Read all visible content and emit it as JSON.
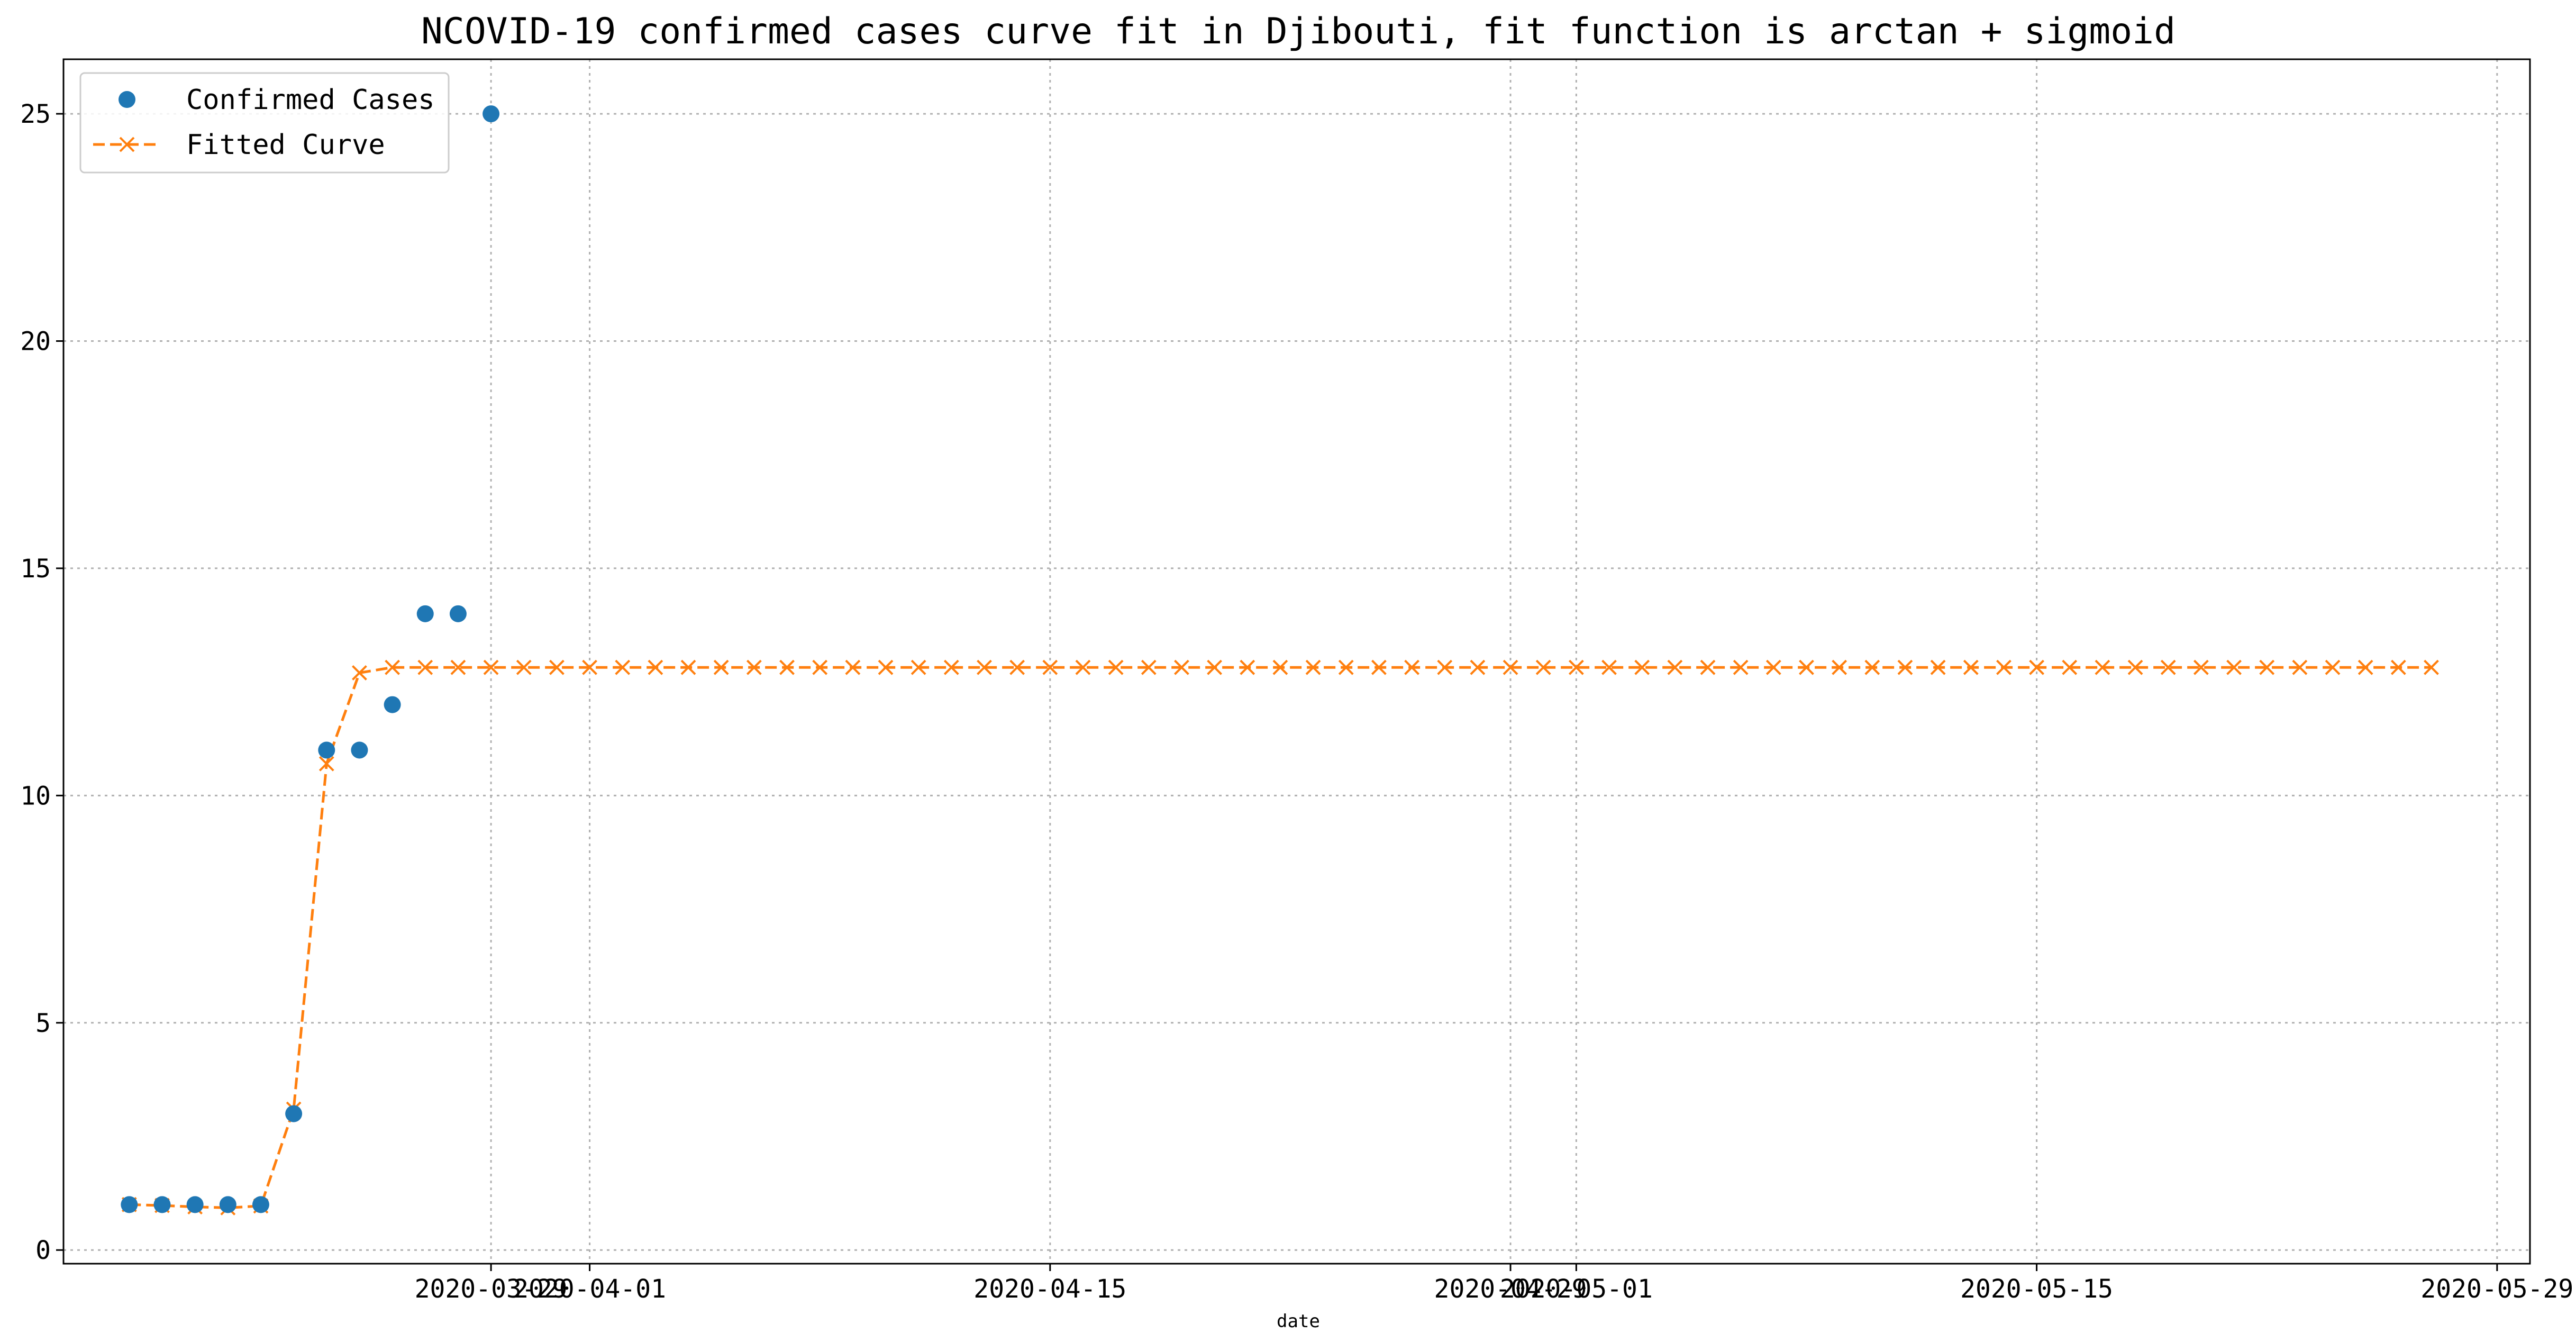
{
  "chart_data": {
    "type": "line",
    "title": "NCOVID-19 confirmed cases curve fit in Djibouti, fit function is arctan + sigmoid",
    "xlabel": "date",
    "ylabel": "",
    "x_start": "2020-03-18",
    "xlim": [
      "2020-03-16",
      "2020-05-30"
    ],
    "ylim": [
      -0.3,
      26.2
    ],
    "xticks": [
      {
        "date": "2020-03-29",
        "label": "2020-03-29"
      },
      {
        "date": "2020-04-01",
        "label": "2020-04-01"
      },
      {
        "date": "2020-04-15",
        "label": "2020-04-15"
      },
      {
        "date": "2020-04-29",
        "label": "2020-04-29"
      },
      {
        "date": "2020-05-01",
        "label": "2020-05-01"
      },
      {
        "date": "2020-05-15",
        "label": "2020-05-15"
      },
      {
        "date": "2020-05-29",
        "label": "2020-05-29"
      }
    ],
    "yticks": [
      0,
      5,
      10,
      15,
      20,
      25
    ],
    "grid": true,
    "legend_position": "top-left",
    "series": [
      {
        "name": "Confirmed Cases",
        "color": "#1f77b4",
        "style": "marker-o",
        "values": [
          1,
          1,
          1,
          1,
          1,
          3,
          11,
          11,
          12,
          14,
          14,
          25
        ]
      },
      {
        "name": "Fitted Curve",
        "color": "#ff7f0e",
        "style": "dashed-x",
        "values": [
          1,
          0.98,
          0.95,
          0.93,
          0.97,
          3.1,
          10.7,
          12.7,
          12.82,
          12.82,
          12.82,
          12.82,
          12.82,
          12.82,
          12.82,
          12.82,
          12.82,
          12.82,
          12.82,
          12.82,
          12.82,
          12.82,
          12.82,
          12.82,
          12.82,
          12.82,
          12.82,
          12.82,
          12.82,
          12.82,
          12.82,
          12.82,
          12.82,
          12.82,
          12.82,
          12.82,
          12.82,
          12.82,
          12.82,
          12.82,
          12.82,
          12.82,
          12.82,
          12.82,
          12.82,
          12.82,
          12.82,
          12.82,
          12.82,
          12.82,
          12.82,
          12.82,
          12.82,
          12.82,
          12.82,
          12.82,
          12.82,
          12.82,
          12.82,
          12.82,
          12.82,
          12.82,
          12.82,
          12.82,
          12.82,
          12.82,
          12.82,
          12.82,
          12.82,
          12.82,
          12.82
        ]
      }
    ]
  }
}
